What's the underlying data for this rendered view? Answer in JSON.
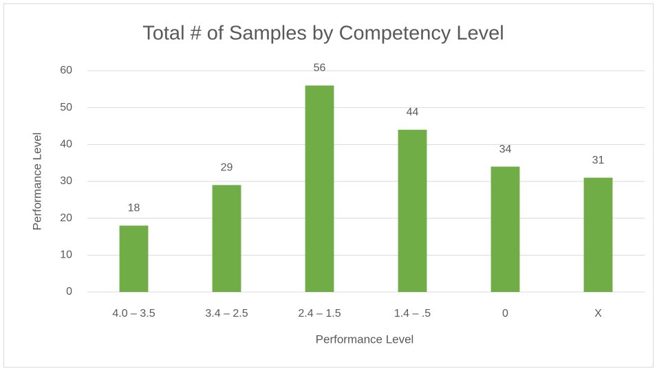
{
  "chart_data": {
    "type": "bar",
    "title": "Total # of Samples by Competency Level",
    "x_label": "Performance Level",
    "y_label": "Performance Level",
    "categories": [
      "4.0 – 3.5",
      "3.4 – 2.5",
      "2.4 – 1.5",
      "1.4 – .5",
      "0",
      "X"
    ],
    "values": [
      18,
      29,
      56,
      44,
      34,
      31
    ],
    "color": "#70ad47",
    "ylim": [
      0,
      60
    ],
    "yticks": [
      0,
      10,
      20,
      30,
      40,
      50,
      60
    ],
    "grid": true
  }
}
